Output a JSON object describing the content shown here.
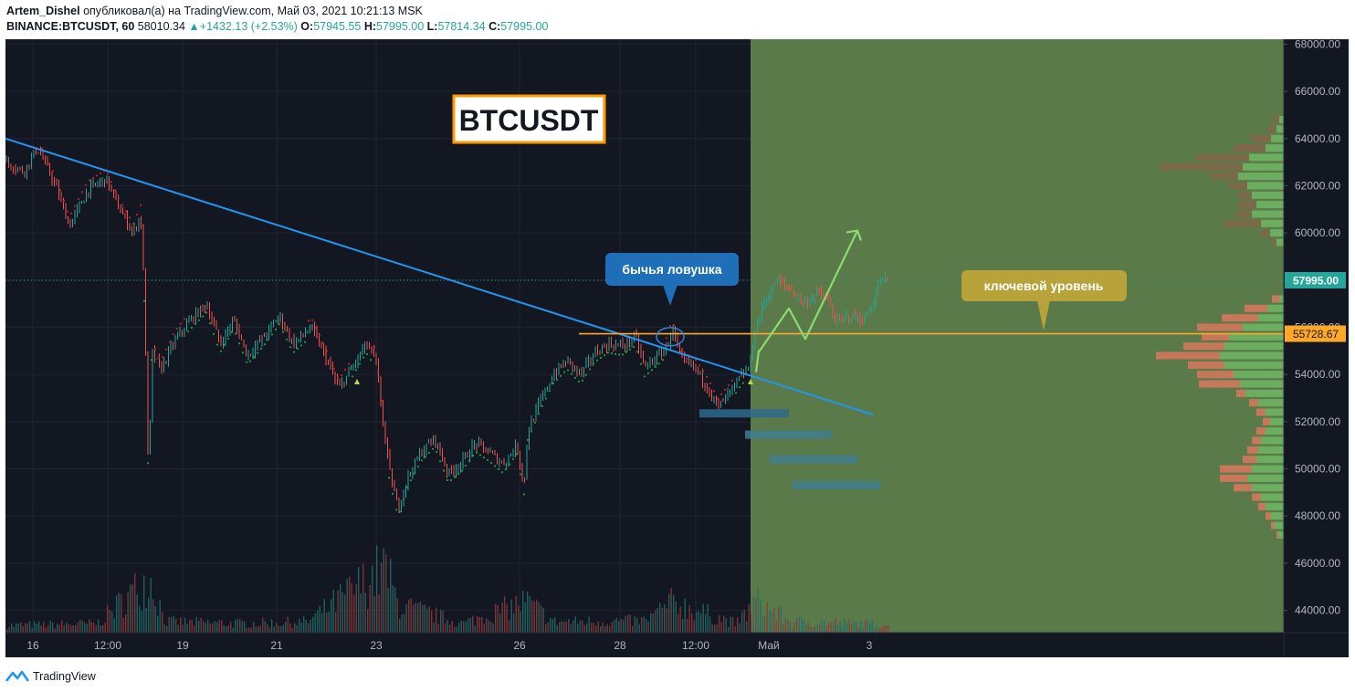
{
  "header": {
    "author": "Artem_Dishel",
    "published_text": "опубликовал(а) на TradingView.com, Май 03, 2021 10:21:13 MSK",
    "symbol": "BINANCE:BTCUSDT, 60",
    "last": "58010.34",
    "change": "+1432.13 (+2.53%)",
    "o_label": "O:",
    "o_value": "57945.55",
    "h_label": "H:",
    "h_value": "57995.00",
    "l_label": "L:",
    "l_value": "57814.34",
    "c_label": "C:",
    "c_value": "57995.00"
  },
  "footer": {
    "brand": "TradingView",
    "logo_icon": "tradingview-logo-icon"
  },
  "colors": {
    "bg": "#131722",
    "up": "#26a69a",
    "down": "#ef5350",
    "trendline": "#2196f3",
    "key_level": "#ffa726",
    "forecast_zone": "#5b7a4a",
    "forecast_arrow": "#8bdb72",
    "callout_blue": "#1e6fb8",
    "callout_gold": "#b8a23a"
  },
  "chart_data": {
    "type": "candlestick",
    "title_box": "BTCUSDT",
    "x_ticks": [
      "16",
      "12:00",
      "19",
      "21",
      "23",
      "26",
      "28",
      "12:00",
      "Май",
      "3"
    ],
    "y_ticks": [
      "68000.00",
      "66000.00",
      "64000.00",
      "62000.00",
      "60000.00",
      "58000.00",
      "56000.00",
      "54000.00",
      "52000.00",
      "50000.00",
      "48000.00",
      "46000.00",
      "44000.00"
    ],
    "ylim": [
      43000,
      68400
    ],
    "current_price_label": "57995.00",
    "current_price": 57995,
    "key_level_label": "55728.67",
    "key_level": 55728.67,
    "price_path": [
      [
        0,
        63000
      ],
      [
        20,
        62600
      ],
      [
        35,
        63600
      ],
      [
        55,
        62000
      ],
      [
        70,
        60300
      ],
      [
        90,
        61800
      ],
      [
        110,
        62300
      ],
      [
        125,
        61000
      ],
      [
        140,
        60000
      ],
      [
        148,
        60800
      ],
      [
        152,
        57500
      ],
      [
        157,
        48900
      ],
      [
        160,
        55000
      ],
      [
        170,
        54200
      ],
      [
        185,
        55400
      ],
      [
        200,
        56200
      ],
      [
        220,
        57000
      ],
      [
        235,
        55300
      ],
      [
        250,
        56300
      ],
      [
        265,
        54800
      ],
      [
        285,
        55700
      ],
      [
        300,
        56500
      ],
      [
        315,
        55300
      ],
      [
        335,
        56000
      ],
      [
        350,
        54800
      ],
      [
        365,
        53400
      ],
      [
        380,
        54300
      ],
      [
        395,
        55300
      ],
      [
        405,
        54700
      ],
      [
        412,
        52500
      ],
      [
        420,
        50000
      ],
      [
        430,
        48300
      ],
      [
        440,
        49600
      ],
      [
        455,
        50700
      ],
      [
        470,
        51300
      ],
      [
        485,
        49800
      ],
      [
        500,
        50300
      ],
      [
        515,
        51100
      ],
      [
        530,
        50700
      ],
      [
        545,
        50200
      ],
      [
        560,
        51000
      ],
      [
        568,
        49300
      ],
      [
        572,
        51600
      ],
      [
        585,
        52800
      ],
      [
        600,
        54000
      ],
      [
        615,
        54600
      ],
      [
        630,
        54000
      ],
      [
        645,
        54900
      ],
      [
        660,
        55300
      ],
      [
        675,
        55200
      ],
      [
        690,
        55600
      ],
      [
        700,
        54300
      ],
      [
        715,
        54800
      ],
      [
        725,
        55200
      ],
      [
        730,
        56000
      ],
      [
        740,
        54600
      ],
      [
        755,
        54300
      ],
      [
        770,
        53400
      ],
      [
        780,
        52600
      ],
      [
        795,
        53300
      ],
      [
        805,
        53900
      ],
      [
        815,
        54300
      ],
      [
        820,
        55700
      ],
      [
        830,
        57000
      ],
      [
        845,
        58000
      ],
      [
        860,
        57600
      ],
      [
        875,
        57000
      ],
      [
        890,
        57500
      ],
      [
        900,
        57200
      ],
      [
        910,
        56200
      ],
      [
        925,
        56500
      ],
      [
        940,
        56300
      ],
      [
        950,
        57000
      ],
      [
        958,
        58000
      ],
      [
        968,
        57995
      ]
    ],
    "volume_path": [
      [
        0,
        8
      ],
      [
        100,
        10
      ],
      [
        157,
        60
      ],
      [
        175,
        12
      ],
      [
        260,
        10
      ],
      [
        330,
        12
      ],
      [
        415,
        70
      ],
      [
        430,
        30
      ],
      [
        500,
        10
      ],
      [
        570,
        34
      ],
      [
        600,
        12
      ],
      [
        700,
        13
      ],
      [
        730,
        33
      ],
      [
        800,
        10
      ],
      [
        822,
        34
      ],
      [
        860,
        12
      ],
      [
        968,
        9
      ]
    ],
    "trendline": [
      [
        0,
        64000
      ],
      [
        950,
        52300
      ]
    ],
    "key_level_span": [
      628,
      1400
    ],
    "forecast_zone_x": [
      816,
      1400
    ],
    "forecast_arrow_path": [
      [
        822,
        54100
      ],
      [
        825,
        55000
      ],
      [
        826,
        55000
      ],
      [
        858,
        56800
      ],
      [
        876,
        55500
      ],
      [
        933,
        60100
      ]
    ],
    "bull_trap_circle": [
      728,
      55600
    ],
    "liquidity_zones": [
      {
        "x": [
          760,
          858
        ],
        "y": 52350,
        "color": "#2e6a8e"
      },
      {
        "x": [
          810,
          905
        ],
        "y": 51450,
        "color": "#3e7f8e"
      },
      {
        "x": [
          837,
          933
        ],
        "y": 50400,
        "color": "#3e7f8e"
      },
      {
        "x": [
          862,
          958
        ],
        "y": 49300,
        "color": "#3e7f8e"
      }
    ],
    "volume_profile": [
      [
        64800,
        5,
        8
      ],
      [
        64400,
        8,
        10
      ],
      [
        64000,
        14,
        22
      ],
      [
        63600,
        20,
        35
      ],
      [
        63200,
        38,
        58
      ],
      [
        62800,
        45,
        90
      ],
      [
        62400,
        50,
        30
      ],
      [
        62000,
        40,
        20
      ],
      [
        61600,
        35,
        15
      ],
      [
        61200,
        30,
        20
      ],
      [
        60800,
        35,
        18
      ],
      [
        60400,
        25,
        40
      ],
      [
        60000,
        15,
        10
      ],
      [
        59600,
        8,
        5
      ],
      [
        57200,
        5,
        8
      ],
      [
        56800,
        18,
        25
      ],
      [
        56400,
        28,
        40
      ],
      [
        56000,
        45,
        50
      ],
      [
        55600,
        60,
        30
      ],
      [
        55200,
        65,
        45
      ],
      [
        54800,
        70,
        70
      ],
      [
        54400,
        65,
        40
      ],
      [
        54000,
        55,
        40
      ],
      [
        53600,
        48,
        45
      ],
      [
        53200,
        42,
        10
      ],
      [
        52800,
        28,
        10
      ],
      [
        52400,
        20,
        10
      ],
      [
        52000,
        15,
        8
      ],
      [
        51600,
        20,
        10
      ],
      [
        51200,
        25,
        10
      ],
      [
        50800,
        28,
        12
      ],
      [
        50400,
        30,
        15
      ],
      [
        50000,
        35,
        35
      ],
      [
        49600,
        40,
        30
      ],
      [
        49200,
        35,
        20
      ],
      [
        48800,
        25,
        10
      ],
      [
        48400,
        20,
        8
      ],
      [
        48000,
        14,
        6
      ],
      [
        47600,
        10,
        4
      ],
      [
        47200,
        6,
        2
      ]
    ],
    "annotations": [
      "бычья ловушка",
      "ключевой уровень"
    ],
    "bull_trap_label": "бычья ловушка",
    "key_level_text": "ключевой уровень"
  }
}
